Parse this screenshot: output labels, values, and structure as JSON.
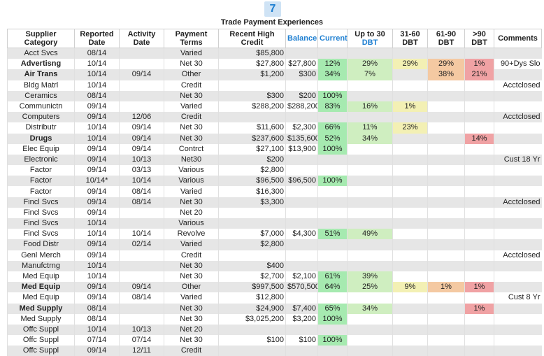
{
  "badge": "7",
  "title": "Trade Payment Experiences",
  "headers": {
    "category": "Supplier Category",
    "reported": "Reported Date",
    "activity": "Activity Date",
    "terms": "Payment Terms",
    "high_credit": "Recent High Credit",
    "balance": "Balance",
    "current": "Current",
    "up30_a": "Up to 30",
    "up30_b": "DBT",
    "d3160": "31-60 DBT",
    "d6190": "61-90 DBT",
    "d90": ">90 DBT",
    "comments": "Comments"
  },
  "colors": {
    "current": "#a6eab0",
    "up_to_30": "#cfeec0",
    "dbt_31_60": "#f3f0b4",
    "dbt_61_90": "#f4c9a2",
    "dbt_90": "#f0a2a4",
    "accent": "#1e7fd1"
  },
  "rows": [
    {
      "cat": "Acct Svcs",
      "bold": false,
      "rep": "08/14",
      "act": "",
      "terms": "Varied",
      "high": "$85,800",
      "bal": "",
      "cur": "",
      "u30": "",
      "d3160": "",
      "d6190": "",
      "d90": "",
      "com": ""
    },
    {
      "cat": "Advertisng",
      "bold": true,
      "rep": "10/14",
      "act": "",
      "terms": "Net 30",
      "high": "$27,800",
      "bal": "$27,800",
      "cur": "12%",
      "u30": "29%",
      "d3160": "29%",
      "d6190": "29%",
      "d90": "1%",
      "com": "90+Dys Slo"
    },
    {
      "cat": "Air Trans",
      "bold": true,
      "rep": "10/14",
      "act": "09/14",
      "terms": "Other",
      "high": "$1,200",
      "bal": "$300",
      "cur": "34%",
      "u30": "7%",
      "d3160": "",
      "d6190": "38%",
      "d90": "21%",
      "com": ""
    },
    {
      "cat": "Bldg Matrl",
      "bold": false,
      "rep": "10/14",
      "act": "",
      "terms": "Credit",
      "high": "",
      "bal": "",
      "cur": "",
      "u30": "",
      "d3160": "",
      "d6190": "",
      "d90": "",
      "com": "Acctclosed"
    },
    {
      "cat": "Ceramics",
      "bold": false,
      "rep": "08/14",
      "act": "",
      "terms": "Net 30",
      "high": "$300",
      "bal": "$200",
      "cur": "100%",
      "u30": "",
      "d3160": "",
      "d6190": "",
      "d90": "",
      "com": ""
    },
    {
      "cat": "Communictn",
      "bold": false,
      "rep": "09/14",
      "act": "",
      "terms": "Varied",
      "high": "$288,200",
      "bal": "$288,200",
      "cur": "83%",
      "u30": "16%",
      "d3160": "1%",
      "d6190": "",
      "d90": "",
      "com": ""
    },
    {
      "cat": "Computers",
      "bold": false,
      "rep": "09/14",
      "act": "12/06",
      "terms": "Credit",
      "high": "",
      "bal": "",
      "cur": "",
      "u30": "",
      "d3160": "",
      "d6190": "",
      "d90": "",
      "com": "Acctclosed"
    },
    {
      "cat": "Distributr",
      "bold": false,
      "rep": "10/14",
      "act": "09/14",
      "terms": "Net 30",
      "high": "$11,600",
      "bal": "$2,300",
      "cur": "66%",
      "u30": "11%",
      "d3160": "23%",
      "d6190": "",
      "d90": "",
      "com": ""
    },
    {
      "cat": "Drugs",
      "bold": true,
      "rep": "10/14",
      "act": "09/14",
      "terms": "Net 30",
      "high": "$237,600",
      "bal": "$135,600",
      "cur": "52%",
      "u30": "34%",
      "d3160": "",
      "d6190": "",
      "d90": "14%",
      "com": ""
    },
    {
      "cat": "Elec Equip",
      "bold": false,
      "rep": "09/14",
      "act": "09/14",
      "terms": "Contrct",
      "high": "$27,100",
      "bal": "$13,900",
      "cur": "100%",
      "u30": "",
      "d3160": "",
      "d6190": "",
      "d90": "",
      "com": ""
    },
    {
      "cat": "Electronic",
      "bold": false,
      "rep": "09/14",
      "act": "10/13",
      "terms": "Net30",
      "high": "$200",
      "bal": "",
      "cur": "",
      "u30": "",
      "d3160": "",
      "d6190": "",
      "d90": "",
      "com": "Cust 18 Yr"
    },
    {
      "cat": "Factor",
      "bold": false,
      "rep": "09/14",
      "act": "03/13",
      "terms": "Various",
      "high": "$2,800",
      "bal": "",
      "cur": "",
      "u30": "",
      "d3160": "",
      "d6190": "",
      "d90": "",
      "com": ""
    },
    {
      "cat": "Factor",
      "bold": false,
      "rep": "10/14*",
      "act": "10/14",
      "terms": "Various",
      "high": "$96,500",
      "bal": "$96,500",
      "cur": "100%",
      "u30": "",
      "d3160": "",
      "d6190": "",
      "d90": "",
      "com": ""
    },
    {
      "cat": "Factor",
      "bold": false,
      "rep": "09/14",
      "act": "08/14",
      "terms": "Varied",
      "high": "$16,300",
      "bal": "",
      "cur": "",
      "u30": "",
      "d3160": "",
      "d6190": "",
      "d90": "",
      "com": ""
    },
    {
      "cat": "Fincl Svcs",
      "bold": false,
      "rep": "09/14",
      "act": "08/14",
      "terms": "Net 30",
      "high": "$3,300",
      "bal": "",
      "cur": "",
      "u30": "",
      "d3160": "",
      "d6190": "",
      "d90": "",
      "com": "Acctclosed"
    },
    {
      "cat": "Fincl Svcs",
      "bold": false,
      "rep": "09/14",
      "act": "",
      "terms": "Net 20",
      "high": "",
      "bal": "",
      "cur": "",
      "u30": "",
      "d3160": "",
      "d6190": "",
      "d90": "",
      "com": ""
    },
    {
      "cat": "Fincl Svcs",
      "bold": false,
      "rep": "10/14",
      "act": "",
      "terms": "Various",
      "high": "",
      "bal": "",
      "cur": "",
      "u30": "",
      "d3160": "",
      "d6190": "",
      "d90": "",
      "com": ""
    },
    {
      "cat": "Fincl Svcs",
      "bold": false,
      "rep": "10/14",
      "act": "10/14",
      "terms": "Revolve",
      "high": "$7,000",
      "bal": "$4,300",
      "cur": "51%",
      "u30": "49%",
      "d3160": "",
      "d6190": "",
      "d90": "",
      "com": ""
    },
    {
      "cat": "Food Distr",
      "bold": false,
      "rep": "09/14",
      "act": "02/14",
      "terms": "Varied",
      "high": "$2,800",
      "bal": "",
      "cur": "",
      "u30": "",
      "d3160": "",
      "d6190": "",
      "d90": "",
      "com": ""
    },
    {
      "cat": "Genl Merch",
      "bold": false,
      "rep": "09/14",
      "act": "",
      "terms": "Credit",
      "high": "",
      "bal": "",
      "cur": "",
      "u30": "",
      "d3160": "",
      "d6190": "",
      "d90": "",
      "com": "Acctclosed"
    },
    {
      "cat": "Manufctrng",
      "bold": false,
      "rep": "10/14",
      "act": "",
      "terms": "Net 30",
      "high": "$400",
      "bal": "",
      "cur": "",
      "u30": "",
      "d3160": "",
      "d6190": "",
      "d90": "",
      "com": ""
    },
    {
      "cat": "Med Equip",
      "bold": false,
      "rep": "10/14",
      "act": "",
      "terms": "Net 30",
      "high": "$2,700",
      "bal": "$2,100",
      "cur": "61%",
      "u30": "39%",
      "d3160": "",
      "d6190": "",
      "d90": "",
      "com": ""
    },
    {
      "cat": "Med Equip",
      "bold": true,
      "rep": "09/14",
      "act": "09/14",
      "terms": "Other",
      "high": "$997,500",
      "bal": "$570,500",
      "cur": "64%",
      "u30": "25%",
      "d3160": "9%",
      "d6190": "1%",
      "d90": "1%",
      "com": ""
    },
    {
      "cat": "Med Equip",
      "bold": false,
      "rep": "09/14",
      "act": "08/14",
      "terms": "Varied",
      "high": "$12,800",
      "bal": "",
      "cur": "",
      "u30": "",
      "d3160": "",
      "d6190": "",
      "d90": "",
      "com": "Cust 8 Yr"
    },
    {
      "cat": "Med Supply",
      "bold": true,
      "rep": "08/14",
      "act": "",
      "terms": "Net 30",
      "high": "$24,900",
      "bal": "$7,400",
      "cur": "65%",
      "u30": "34%",
      "d3160": "",
      "d6190": "",
      "d90": "1%",
      "com": ""
    },
    {
      "cat": "Med Supply",
      "bold": false,
      "rep": "08/14",
      "act": "",
      "terms": "Net 30",
      "high": "$3,025,200",
      "bal": "$3,200",
      "cur": "100%",
      "u30": "",
      "d3160": "",
      "d6190": "",
      "d90": "",
      "com": ""
    },
    {
      "cat": "Offc Suppl",
      "bold": false,
      "rep": "10/14",
      "act": "10/13",
      "terms": "Net 20",
      "high": "",
      "bal": "",
      "cur": "",
      "u30": "",
      "d3160": "",
      "d6190": "",
      "d90": "",
      "com": ""
    },
    {
      "cat": "Offc Suppl",
      "bold": false,
      "rep": "07/14",
      "act": "07/14",
      "terms": "Net 30",
      "high": "$100",
      "bal": "$100",
      "cur": "100%",
      "u30": "",
      "d3160": "",
      "d6190": "",
      "d90": "",
      "com": ""
    },
    {
      "cat": "Offc Suppl",
      "bold": false,
      "rep": "09/14",
      "act": "12/11",
      "terms": "Credit",
      "high": "",
      "bal": "",
      "cur": "",
      "u30": "",
      "d3160": "",
      "d6190": "",
      "d90": "",
      "com": ""
    }
  ]
}
